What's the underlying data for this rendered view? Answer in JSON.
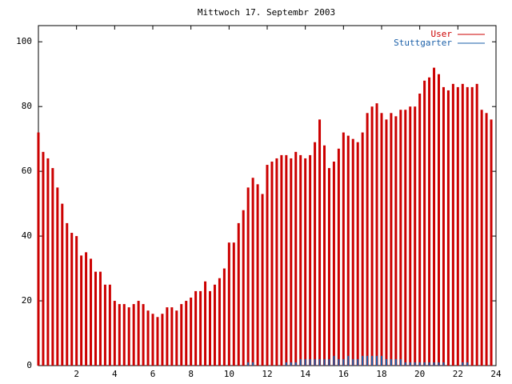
{
  "chart_data": {
    "type": "impulse",
    "title": "Mittwoch 17. Septembr 2003",
    "x": [
      0,
      0.25,
      0.5,
      0.75,
      1,
      1.25,
      1.5,
      1.75,
      2,
      2.25,
      2.5,
      2.75,
      3,
      3.25,
      3.5,
      3.75,
      4,
      4.25,
      4.5,
      4.75,
      5,
      5.25,
      5.5,
      5.75,
      6,
      6.25,
      6.5,
      6.75,
      7,
      7.25,
      7.5,
      7.75,
      8,
      8.25,
      8.5,
      8.75,
      9,
      9.25,
      9.5,
      9.75,
      10,
      10.25,
      10.5,
      10.75,
      11,
      11.25,
      11.5,
      11.75,
      12,
      12.25,
      12.5,
      12.75,
      13,
      13.25,
      13.5,
      13.75,
      14,
      14.25,
      14.5,
      14.75,
      15,
      15.25,
      15.5,
      15.75,
      16,
      16.25,
      16.5,
      16.75,
      17,
      17.25,
      17.5,
      17.75,
      18,
      18.25,
      18.5,
      18.75,
      19,
      19.25,
      19.5,
      19.75,
      20,
      20.25,
      20.5,
      20.75,
      21,
      21.25,
      21.5,
      21.75,
      22,
      22.25,
      22.5,
      22.75,
      23,
      23.25,
      23.5,
      23.75
    ],
    "series": [
      {
        "name": "User",
        "color": "#cc0000",
        "values": [
          72,
          66,
          64,
          61,
          55,
          50,
          44,
          41,
          40,
          34,
          35,
          33,
          29,
          29,
          25,
          25,
          20,
          19,
          19,
          18,
          19,
          20,
          19,
          17,
          16,
          15,
          16,
          18,
          18,
          17,
          19,
          20,
          21,
          23,
          23,
          26,
          23,
          25,
          27,
          30,
          38,
          38,
          44,
          48,
          55,
          58,
          56,
          53,
          62,
          63,
          64,
          65,
          65,
          64,
          66,
          65,
          64,
          65,
          69,
          76,
          68,
          61,
          63,
          67,
          72,
          71,
          70,
          69,
          72,
          78,
          80,
          81,
          78,
          76,
          78,
          77,
          79,
          79,
          80,
          80,
          84,
          88,
          89,
          92,
          90,
          86,
          85,
          87,
          86,
          87,
          86,
          86,
          87,
          79,
          78,
          76
        ]
      },
      {
        "name": "Stuttgarter",
        "color": "#1a5fa8",
        "values": [
          0,
          0,
          0,
          0,
          0,
          0,
          0,
          0,
          0,
          0,
          0,
          0,
          0,
          0,
          0,
          0,
          0,
          0,
          0,
          0,
          0,
          0,
          0,
          0,
          0,
          0,
          0,
          0,
          0,
          0,
          0,
          0,
          0,
          0,
          0,
          0,
          0,
          0,
          0,
          0,
          0,
          0,
          0,
          0,
          1,
          1,
          0,
          0,
          0,
          0,
          0,
          0,
          1,
          1,
          1,
          2,
          2,
          2,
          2,
          2,
          2,
          2,
          3,
          2,
          2,
          3,
          2,
          2,
          3,
          3,
          3,
          3,
          3,
          2,
          2,
          2,
          2,
          1,
          1,
          1,
          1,
          1,
          1,
          1,
          1,
          1,
          0,
          0,
          0,
          1,
          1,
          0,
          0,
          0,
          0,
          0
        ]
      }
    ],
    "xlim": [
      0,
      24
    ],
    "xticks": [
      2,
      4,
      6,
      8,
      10,
      12,
      14,
      16,
      18,
      20,
      22,
      24
    ],
    "ylim": [
      0,
      105
    ],
    "yticks": [
      0,
      20,
      40,
      60,
      80,
      100
    ]
  }
}
